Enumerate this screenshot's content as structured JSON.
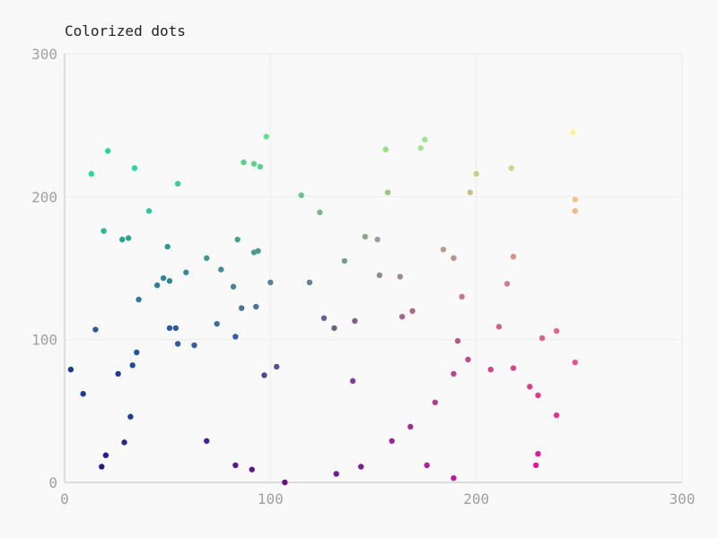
{
  "chart_data": {
    "type": "scatter",
    "title": "Colorized dots",
    "xlabel": "",
    "ylabel": "",
    "xlim": [
      0,
      300
    ],
    "ylim": [
      0,
      300
    ],
    "xticks": [
      0,
      100,
      200,
      300
    ],
    "yticks": [
      0,
      100,
      200,
      300
    ],
    "grid": true,
    "legend": "none",
    "points": [
      {
        "x": 3,
        "y": 79,
        "color": "#1a3b8f"
      },
      {
        "x": 9,
        "y": 62,
        "color": "#1a3b8f"
      },
      {
        "x": 13,
        "y": 216,
        "color": "#2ad69a"
      },
      {
        "x": 15,
        "y": 107,
        "color": "#2e5aa0"
      },
      {
        "x": 18,
        "y": 11,
        "color": "#2a1a86"
      },
      {
        "x": 19,
        "y": 176,
        "color": "#28b894"
      },
      {
        "x": 20,
        "y": 19,
        "color": "#2a1a86"
      },
      {
        "x": 21,
        "y": 232,
        "color": "#2ad69a"
      },
      {
        "x": 26,
        "y": 76,
        "color": "#1e3c90"
      },
      {
        "x": 28,
        "y": 170,
        "color": "#2aa38f"
      },
      {
        "x": 29,
        "y": 28,
        "color": "#2a2a8c"
      },
      {
        "x": 31,
        "y": 171,
        "color": "#2aa38f"
      },
      {
        "x": 32,
        "y": 46,
        "color": "#1e3c90"
      },
      {
        "x": 33,
        "y": 82,
        "color": "#1e4a96"
      },
      {
        "x": 34,
        "y": 220,
        "color": "#2fd39a"
      },
      {
        "x": 35,
        "y": 91,
        "color": "#24559a"
      },
      {
        "x": 36,
        "y": 128,
        "color": "#2a7a9a"
      },
      {
        "x": 41,
        "y": 190,
        "color": "#30c796"
      },
      {
        "x": 45,
        "y": 138,
        "color": "#2f7e9a"
      },
      {
        "x": 48,
        "y": 143,
        "color": "#2f8598"
      },
      {
        "x": 50,
        "y": 165,
        "color": "#329a93"
      },
      {
        "x": 51,
        "y": 141,
        "color": "#318398"
      },
      {
        "x": 51,
        "y": 108,
        "color": "#2e5aa0"
      },
      {
        "x": 54,
        "y": 108,
        "color": "#2e5aa0"
      },
      {
        "x": 55,
        "y": 97,
        "color": "#2e5aa0"
      },
      {
        "x": 55,
        "y": 209,
        "color": "#3ccc96"
      },
      {
        "x": 59,
        "y": 147,
        "color": "#3a8a96"
      },
      {
        "x": 63,
        "y": 96,
        "color": "#3a5c9e"
      },
      {
        "x": 69,
        "y": 29,
        "color": "#4a1e8c"
      },
      {
        "x": 69,
        "y": 157,
        "color": "#3d9a92"
      },
      {
        "x": 74,
        "y": 111,
        "color": "#3e6e9c"
      },
      {
        "x": 76,
        "y": 149,
        "color": "#418e94"
      },
      {
        "x": 82,
        "y": 137,
        "color": "#45829a"
      },
      {
        "x": 83,
        "y": 12,
        "color": "#5a1a8a"
      },
      {
        "x": 83,
        "y": 102,
        "color": "#3e5aa0"
      },
      {
        "x": 84,
        "y": 170,
        "color": "#47a292"
      },
      {
        "x": 86,
        "y": 122,
        "color": "#4a729a"
      },
      {
        "x": 87,
        "y": 224,
        "color": "#56d08e"
      },
      {
        "x": 91,
        "y": 9,
        "color": "#5c1688"
      },
      {
        "x": 92,
        "y": 161,
        "color": "#4e9a92"
      },
      {
        "x": 92,
        "y": 223,
        "color": "#5cd18e"
      },
      {
        "x": 93,
        "y": 123,
        "color": "#4c6e9a"
      },
      {
        "x": 94,
        "y": 162,
        "color": "#4e9a92"
      },
      {
        "x": 95,
        "y": 221,
        "color": "#5cd18e"
      },
      {
        "x": 97,
        "y": 75,
        "color": "#56469a"
      },
      {
        "x": 98,
        "y": 242,
        "color": "#66de8c"
      },
      {
        "x": 100,
        "y": 140,
        "color": "#5a8298"
      },
      {
        "x": 103,
        "y": 81,
        "color": "#5a4e98"
      },
      {
        "x": 107,
        "y": 0,
        "color": "#6a0f86"
      },
      {
        "x": 115,
        "y": 201,
        "color": "#6cc28c"
      },
      {
        "x": 119,
        "y": 140,
        "color": "#6a8092"
      },
      {
        "x": 124,
        "y": 189,
        "color": "#78b88c"
      },
      {
        "x": 126,
        "y": 115,
        "color": "#6a6088"
      },
      {
        "x": 131,
        "y": 108,
        "color": "#705e86"
      },
      {
        "x": 132,
        "y": 6,
        "color": "#7a1a90"
      },
      {
        "x": 136,
        "y": 155,
        "color": "#7a9a8e"
      },
      {
        "x": 140,
        "y": 71,
        "color": "#863e92"
      },
      {
        "x": 141,
        "y": 113,
        "color": "#82608a"
      },
      {
        "x": 144,
        "y": 11,
        "color": "#841a92"
      },
      {
        "x": 146,
        "y": 172,
        "color": "#8aa88a"
      },
      {
        "x": 152,
        "y": 170,
        "color": "#90a68c"
      },
      {
        "x": 153,
        "y": 145,
        "color": "#8e8a8e"
      },
      {
        "x": 156,
        "y": 233,
        "color": "#96de8a"
      },
      {
        "x": 157,
        "y": 203,
        "color": "#98c286"
      },
      {
        "x": 159,
        "y": 29,
        "color": "#9a2498"
      },
      {
        "x": 163,
        "y": 144,
        "color": "#9a8a8e"
      },
      {
        "x": 164,
        "y": 116,
        "color": "#a2668a"
      },
      {
        "x": 168,
        "y": 39,
        "color": "#a42c98"
      },
      {
        "x": 169,
        "y": 120,
        "color": "#a46c88"
      },
      {
        "x": 173,
        "y": 234,
        "color": "#a4e28c"
      },
      {
        "x": 175,
        "y": 240,
        "color": "#a4e28c"
      },
      {
        "x": 176,
        "y": 12,
        "color": "#b01e9a"
      },
      {
        "x": 180,
        "y": 56,
        "color": "#b03e90"
      },
      {
        "x": 184,
        "y": 163,
        "color": "#b89a88"
      },
      {
        "x": 189,
        "y": 157,
        "color": "#bc9088"
      },
      {
        "x": 189,
        "y": 76,
        "color": "#b8468c"
      },
      {
        "x": 189,
        "y": 3,
        "color": "#c0189c"
      },
      {
        "x": 191,
        "y": 99,
        "color": "#bc5688"
      },
      {
        "x": 193,
        "y": 130,
        "color": "#c2768a"
      },
      {
        "x": 196,
        "y": 86,
        "color": "#c04e8a"
      },
      {
        "x": 197,
        "y": 203,
        "color": "#c8c088"
      },
      {
        "x": 200,
        "y": 216,
        "color": "#ccca86"
      },
      {
        "x": 207,
        "y": 79,
        "color": "#c84a8c"
      },
      {
        "x": 211,
        "y": 109,
        "color": "#d06488"
      },
      {
        "x": 215,
        "y": 139,
        "color": "#d47a88"
      },
      {
        "x": 217,
        "y": 220,
        "color": "#d4d08c"
      },
      {
        "x": 218,
        "y": 158,
        "color": "#da9286"
      },
      {
        "x": 218,
        "y": 80,
        "color": "#d24a8c"
      },
      {
        "x": 226,
        "y": 67,
        "color": "#d8408e"
      },
      {
        "x": 229,
        "y": 12,
        "color": "#dc1c9a"
      },
      {
        "x": 230,
        "y": 61,
        "color": "#dc3c90"
      },
      {
        "x": 230,
        "y": 20,
        "color": "#dc1c9a"
      },
      {
        "x": 232,
        "y": 101,
        "color": "#e0628a"
      },
      {
        "x": 239,
        "y": 106,
        "color": "#e4668a"
      },
      {
        "x": 239,
        "y": 47,
        "color": "#e2348e"
      },
      {
        "x": 247,
        "y": 245,
        "color": "#fcf09a"
      },
      {
        "x": 248,
        "y": 198,
        "color": "#f4c088"
      },
      {
        "x": 248,
        "y": 190,
        "color": "#f2b686"
      },
      {
        "x": 248,
        "y": 84,
        "color": "#e8528e"
      }
    ]
  }
}
